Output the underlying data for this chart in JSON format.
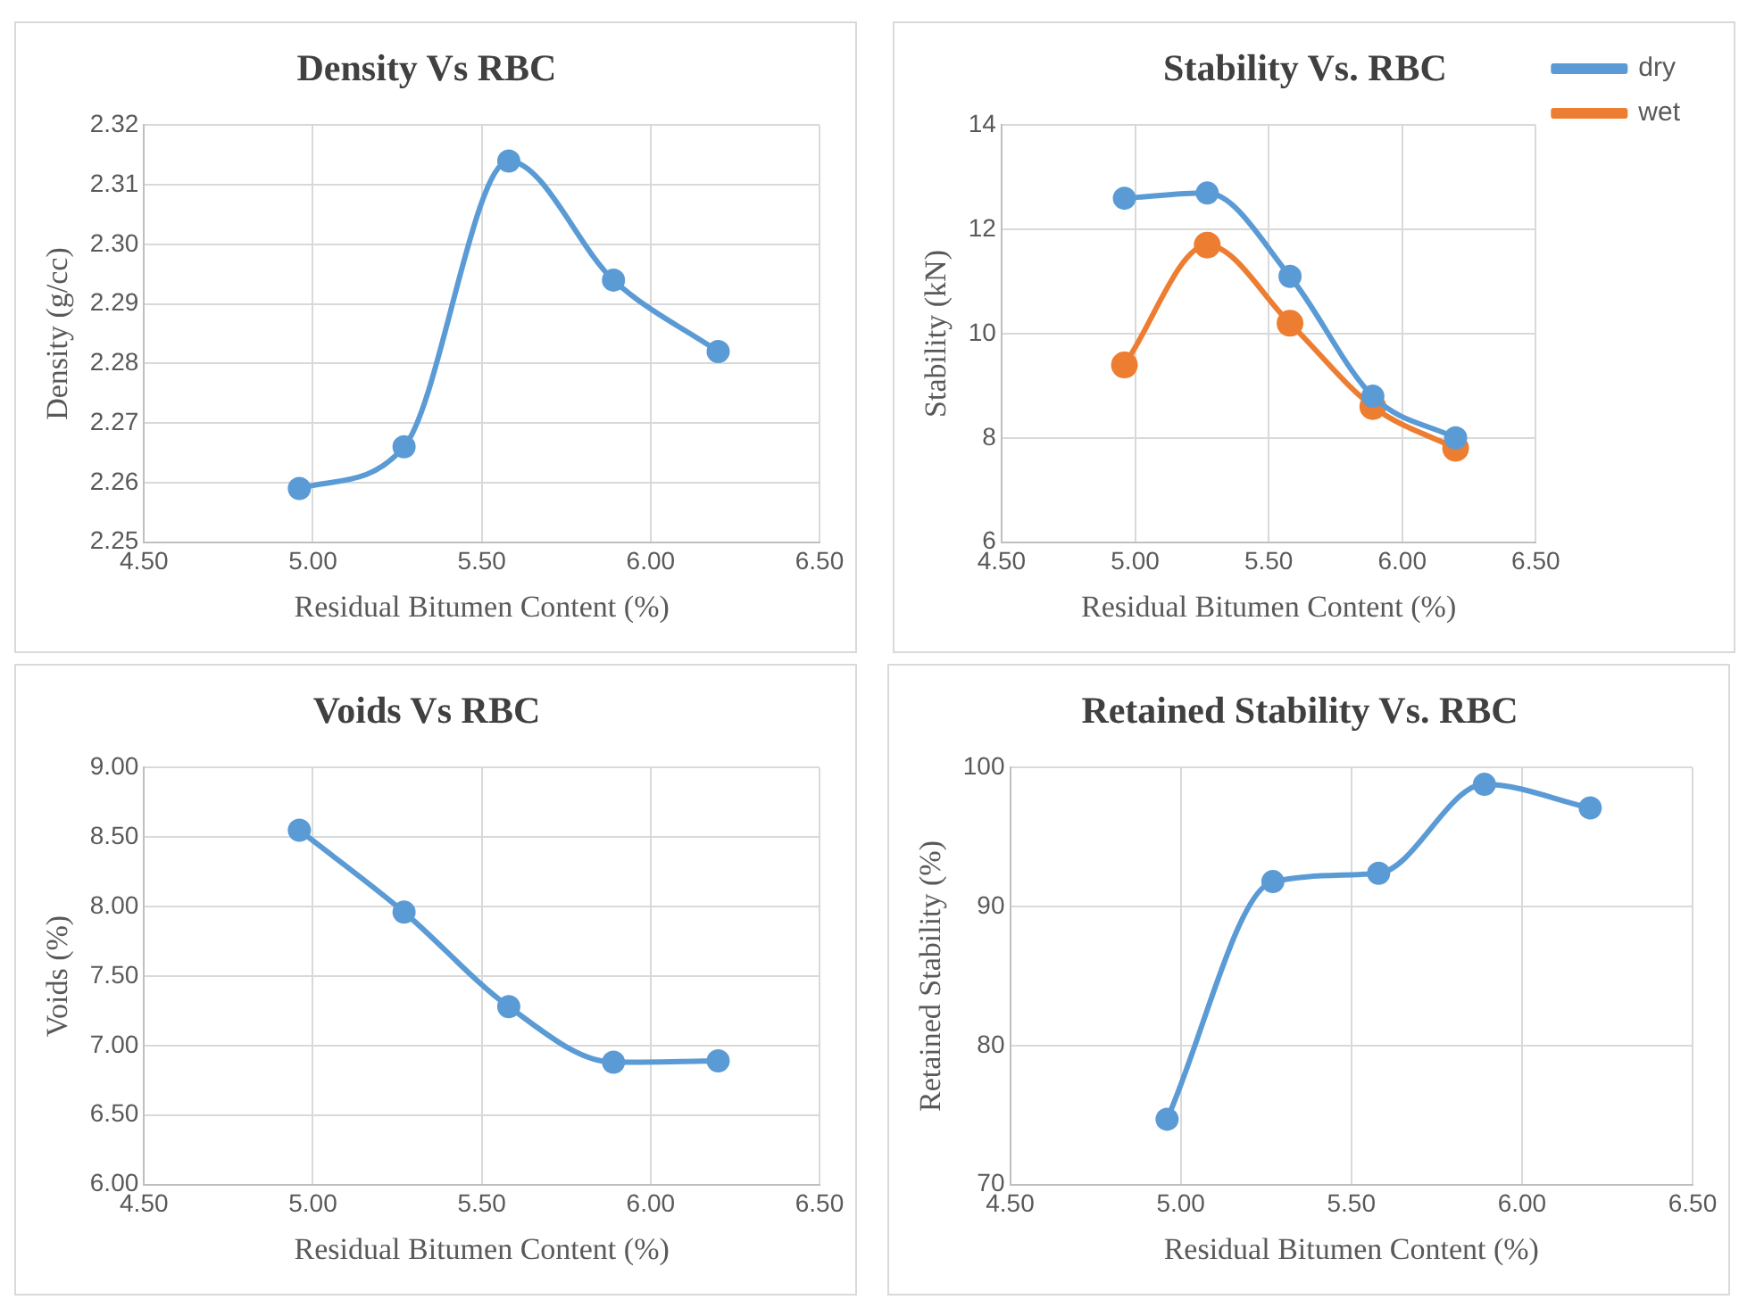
{
  "chart_data": [
    {
      "type": "line",
      "title": "Density Vs RBC",
      "xlabel": "Residual Bitumen Content (%)",
      "ylabel": "Density (g/cc)",
      "x": [
        4.96,
        5.27,
        5.58,
        5.89,
        6.2
      ],
      "series": [
        {
          "color": "#5b9bd5",
          "values": [
            2.259,
            2.266,
            2.314,
            2.294,
            2.282
          ]
        }
      ],
      "xlim": [
        4.5,
        6.5
      ],
      "xticks": [
        {
          "value": 4.5,
          "label": "4.50"
        },
        {
          "value": 5,
          "label": "5.00"
        },
        {
          "value": 5.5,
          "label": "5.50"
        },
        {
          "value": 6,
          "label": "6.00"
        },
        {
          "value": 6.5,
          "label": "6.50"
        }
      ],
      "ylim": [
        2.25,
        2.32
      ],
      "yticks": [
        2.25,
        2.26,
        2.27,
        2.28,
        2.29,
        {
          "value": 2.3,
          "label": "2.30"
        },
        2.31,
        2.32
      ],
      "grid": true,
      "marker": "circle",
      "legend": false
    },
    {
      "type": "line",
      "title": "Stability Vs. RBC",
      "xlabel": "Residual Bitumen Content (%)",
      "ylabel": "Stability (kN)",
      "x": [
        4.96,
        5.27,
        5.58,
        5.89,
        6.2
      ],
      "series": [
        {
          "name": "dry",
          "color": "#5b9bd5",
          "values": [
            12.6,
            12.7,
            11.1,
            8.8,
            8.0
          ]
        },
        {
          "name": "wet",
          "color": "#ed7d31",
          "values": [
            9.4,
            11.7,
            10.2,
            8.6,
            7.8
          ]
        }
      ],
      "xlim": [
        4.5,
        6.5
      ],
      "xticks": [
        {
          "value": 4.5,
          "label": "4.50"
        },
        {
          "value": 5,
          "label": "5.00"
        },
        {
          "value": 5.5,
          "label": "5.50"
        },
        {
          "value": 6,
          "label": "6.00"
        },
        {
          "value": 6.5,
          "label": "6.50"
        }
      ],
      "ylim": [
        6,
        14
      ],
      "yticks": [
        6,
        8,
        10,
        12,
        14
      ],
      "grid": true,
      "marker": "circle",
      "legend": "top right"
    },
    {
      "type": "line",
      "title": "Voids Vs RBC",
      "xlabel": "Residual Bitumen Content (%)",
      "ylabel": "Voids (%)",
      "x": [
        4.96,
        5.27,
        5.58,
        5.89,
        6.2
      ],
      "series": [
        {
          "color": "#5b9bd5",
          "values": [
            8.55,
            7.96,
            7.28,
            6.88,
            6.89
          ]
        }
      ],
      "xlim": [
        4.5,
        6.5
      ],
      "xticks": [
        {
          "value": 4.5,
          "label": "4.50"
        },
        {
          "value": 5,
          "label": "5.00"
        },
        {
          "value": 5.5,
          "label": "5.50"
        },
        {
          "value": 6,
          "label": "6.00"
        },
        {
          "value": 6.5,
          "label": "6.50"
        }
      ],
      "ylim": [
        6,
        9
      ],
      "yticks": [
        {
          "value": 6,
          "label": "6.00"
        },
        {
          "value": 6.5,
          "label": "6.50"
        },
        {
          "value": 7,
          "label": "7.00"
        },
        {
          "value": 7.5,
          "label": "7.50"
        },
        {
          "value": 8,
          "label": "8.00"
        },
        {
          "value": 8.5,
          "label": "8.50"
        },
        {
          "value": 9,
          "label": "9.00"
        }
      ],
      "grid": true,
      "marker": "circle",
      "legend": false
    },
    {
      "type": "line",
      "title": "Retained Stability Vs. RBC",
      "xlabel": "Residual Bitumen Content (%)",
      "ylabel": "Retained Stability (%)",
      "x": [
        4.96,
        5.27,
        5.58,
        5.89,
        6.2
      ],
      "series": [
        {
          "color": "#5b9bd5",
          "values": [
            74.7,
            91.8,
            92.4,
            98.8,
            97.1
          ]
        }
      ],
      "xlim": [
        4.5,
        6.5
      ],
      "xticks": [
        {
          "value": 4.5,
          "label": "4.50"
        },
        {
          "value": 5,
          "label": "5.00"
        },
        {
          "value": 5.5,
          "label": "5.50"
        },
        {
          "value": 6,
          "label": "6.00"
        },
        {
          "value": 6.5,
          "label": "6.50"
        }
      ],
      "ylim": [
        70,
        100
      ],
      "yticks": [
        70,
        80,
        90,
        100
      ],
      "grid": true,
      "marker": "circle",
      "legend": false
    }
  ]
}
